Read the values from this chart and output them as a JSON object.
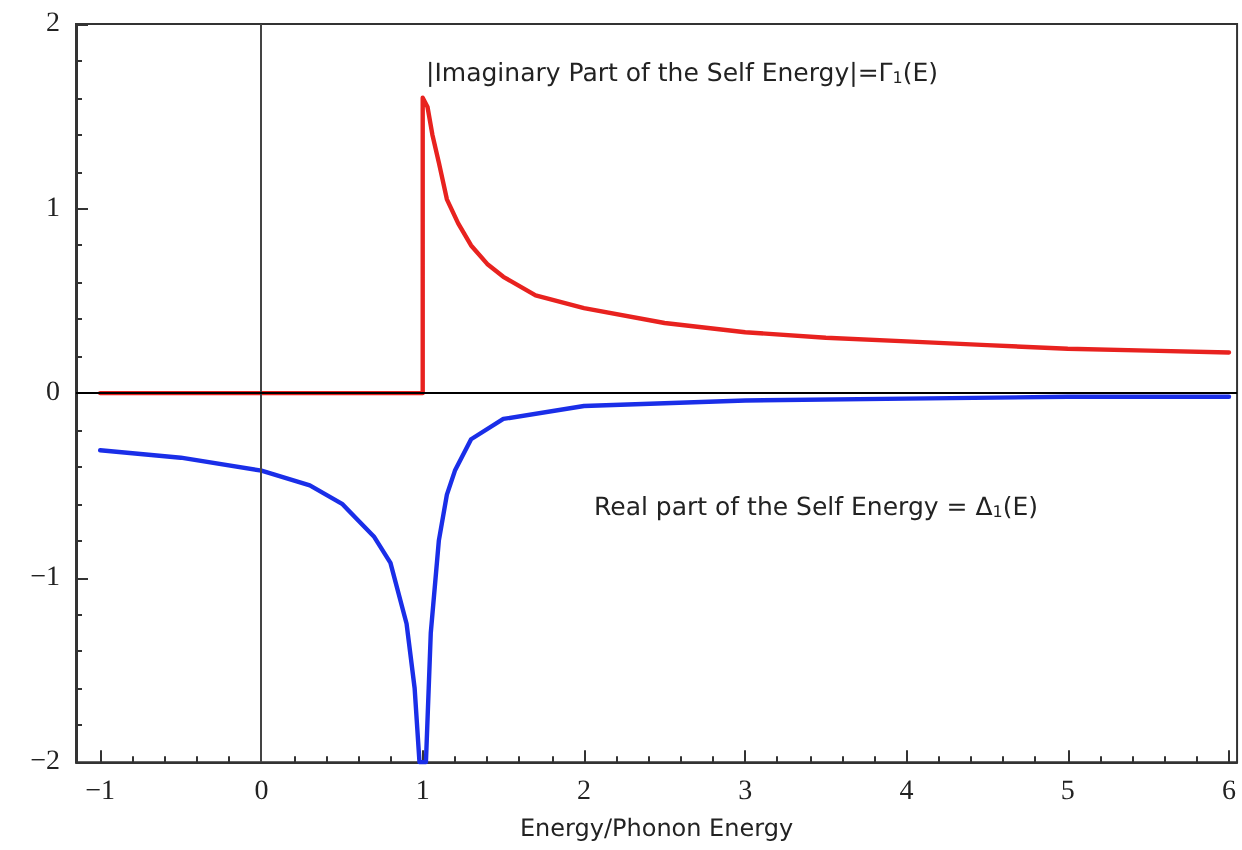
{
  "chart_data": {
    "type": "line",
    "xlabel": "Energy/Phonon Energy",
    "xlim": [
      -1.15,
      6.05
    ],
    "ylim": [
      -2,
      2
    ],
    "xticks": [
      -1,
      0,
      1,
      2,
      3,
      4,
      5,
      6
    ],
    "yticks": [
      -2,
      -1,
      0,
      1,
      2
    ],
    "grid": false,
    "marker": "none",
    "line_style": "solid",
    "ref_lines": [
      {
        "axis": "x",
        "value": 0,
        "color": "#444444"
      },
      {
        "axis": "y",
        "value": 0,
        "color": "#000000"
      }
    ],
    "annotations": [
      "|Imaginary Part of the Self Energy|=Γ$_{1}$(E)",
      "Real part of the Self Energy = Δ$_{1}$(E)"
    ],
    "series": [
      {
        "color": "#e8221f",
        "x": [
          -1,
          1,
          1,
          1.03,
          1.06,
          1.1,
          1.15,
          1.22,
          1.3,
          1.4,
          1.5,
          1.7,
          2,
          2.5,
          3,
          3.5,
          4,
          4.5,
          5,
          5.5,
          6
        ],
        "values": [
          0,
          0,
          1.6,
          1.55,
          1.4,
          1.25,
          1.05,
          0.92,
          0.8,
          0.7,
          0.63,
          0.53,
          0.46,
          0.38,
          0.33,
          0.3,
          0.28,
          0.26,
          0.24,
          0.23,
          0.22
        ]
      },
      {
        "color": "#1a2ee8",
        "x": [
          -1,
          -0.5,
          0,
          0.3,
          0.5,
          0.7,
          0.8,
          0.9,
          0.95,
          0.98,
          1,
          1.02,
          1.05,
          1.1,
          1.15,
          1.2,
          1.3,
          1.5,
          2,
          3,
          4,
          5,
          6
        ],
        "values": [
          -0.31,
          -0.35,
          -0.42,
          -0.5,
          -0.6,
          -0.78,
          -0.92,
          -1.25,
          -1.6,
          -2,
          -2,
          -2,
          -1.3,
          -0.8,
          -0.55,
          -0.42,
          -0.25,
          -0.14,
          -0.07,
          -0.04,
          -0.03,
          -0.02,
          -0.02
        ]
      }
    ]
  }
}
